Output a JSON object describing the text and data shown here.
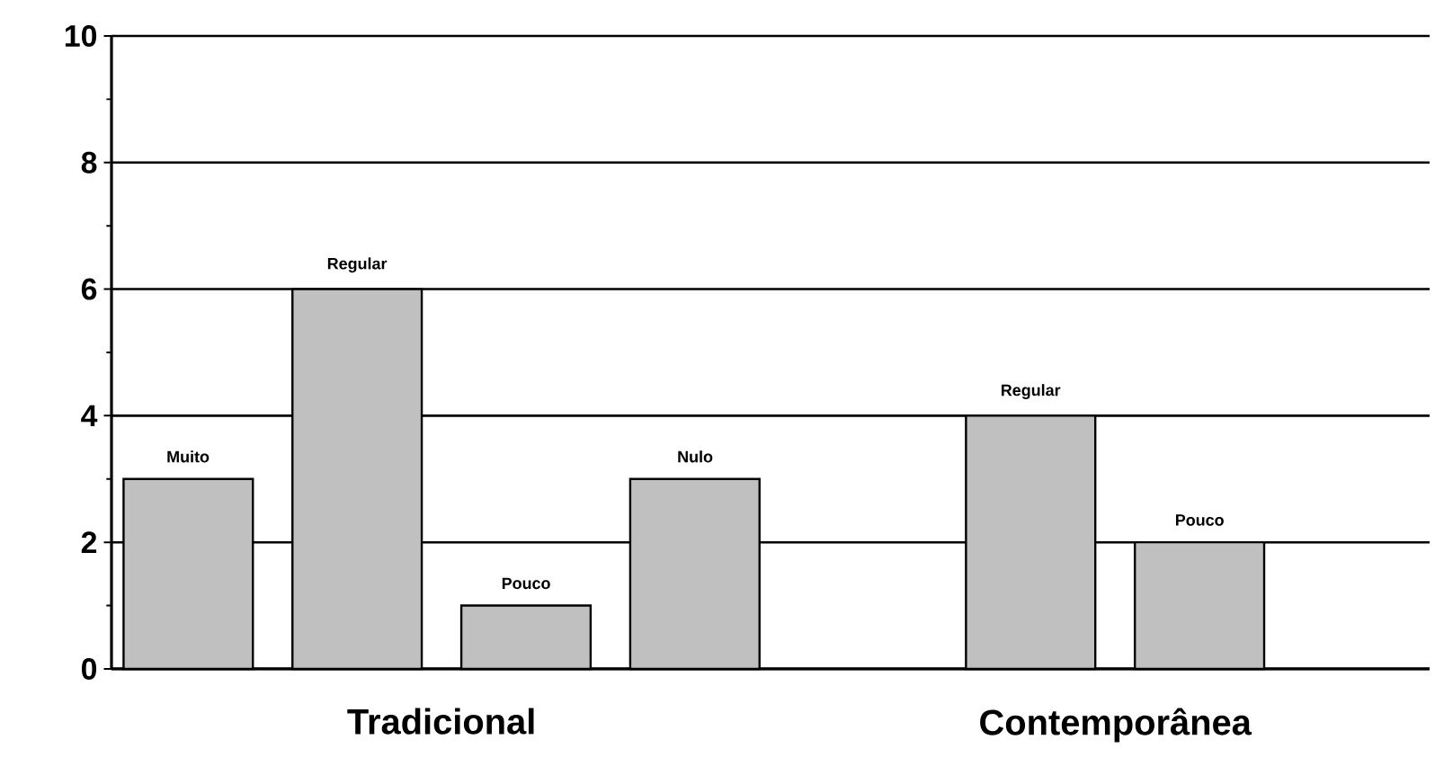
{
  "chart_data": {
    "type": "bar",
    "categories": [
      "Tradicional",
      "Contemporânea"
    ],
    "series": [
      {
        "name": "Muito",
        "color": "#c0c0c0",
        "values": [
          3,
          null
        ]
      },
      {
        "name": "Regular",
        "color": "#c0c0c0",
        "values": [
          6,
          4
        ]
      },
      {
        "name": "Pouco",
        "color": "#c0c0c0",
        "values": [
          1,
          2
        ]
      },
      {
        "name": "Nulo",
        "color": "#c0c0c0",
        "values": [
          3,
          null
        ]
      }
    ],
    "ylim": [
      0,
      10
    ],
    "yticks": [
      0,
      2,
      4,
      6,
      8,
      10
    ],
    "grid": "y"
  }
}
